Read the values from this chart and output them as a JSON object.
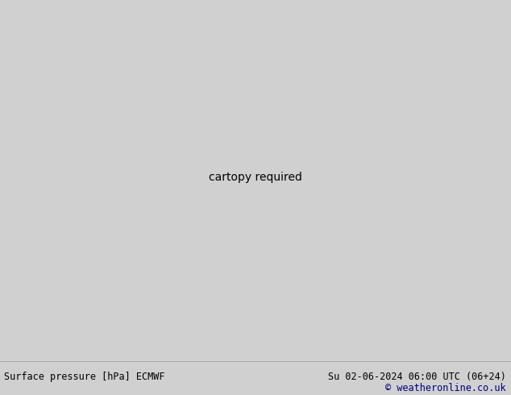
{
  "title_left": "Surface pressure [hPa] ECMWF",
  "title_right": "Su 02-06-2024 06:00 UTC (06+24)",
  "copyright": "© weatheronline.co.uk",
  "bg_color": "#d0d0d0",
  "land_color": "#b8e08a",
  "sea_color": "#d0d0d0",
  "lake_color": "#d0d0d0",
  "border_color": "#888888",
  "contour_blue": "#0000ff",
  "contour_red": "#ff0000",
  "contour_black": "#000000",
  "fig_width": 6.34,
  "fig_height": 4.9,
  "dpi": 100,
  "extent": [
    -175,
    -45,
    12,
    82
  ],
  "central_longitude": -105,
  "central_latitude": 50,
  "standard_parallels": [
    33,
    45
  ],
  "pressure_levels_step": 4,
  "pressure_min": 980,
  "pressure_max": 1032
}
